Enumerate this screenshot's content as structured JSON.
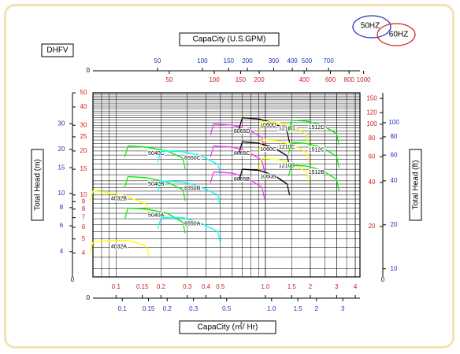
{
  "chart_data": {
    "type": "line",
    "model": "DHFV",
    "freq_legend": [
      {
        "label": "50HZ",
        "color": "#2030c0"
      },
      {
        "label": "60HZ",
        "color": "#d02020"
      }
    ],
    "x_top_title": "CapaCity (U.S.GPM)",
    "x_bottom_title": "CapaCity (㎥/ Hr)",
    "y_left_title": "Total Head (m)",
    "y_right_title": "Total Head (ft)",
    "x_scale": "log",
    "y_scale": "log",
    "xlim_m3min": [
      0.07,
      4.3
    ],
    "ylim_m": [
      2.2,
      40
    ],
    "colors": {
      "hz50": "#2030c0",
      "hz60": "#d02020",
      "black": "#000000",
      "grid": "#000000"
    },
    "zero_label": "0",
    "axes": {
      "top_blue_gpm": {
        "labels": [
          "50",
          "100",
          "150",
          "200",
          "300",
          "400",
          "500",
          "700"
        ],
        "values": [
          50,
          100,
          150,
          200,
          300,
          400,
          500,
          700
        ]
      },
      "top_red_gpm": {
        "labels": [
          "50",
          "100",
          "150",
          "200",
          "400",
          "600",
          "800",
          "1000"
        ],
        "values": [
          50,
          100,
          150,
          200,
          400,
          600,
          800,
          1000
        ]
      },
      "bottom_red_m3": {
        "labels": [
          "0.1",
          "0.15",
          "0.2",
          "0.3",
          "0.4",
          "0.5",
          "1.0",
          "1.5",
          "2",
          "3",
          "4"
        ],
        "values": [
          0.1,
          0.15,
          0.2,
          0.3,
          0.4,
          0.5,
          1.0,
          1.5,
          2,
          3,
          4
        ]
      },
      "bottom_blue_m3": {
        "labels": [
          "0.1",
          "0.15",
          "0.2",
          "0.3",
          "0.5",
          "1.0",
          "1.5",
          "2",
          "3"
        ],
        "values": [
          0.1,
          0.15,
          0.2,
          0.3,
          0.5,
          1.0,
          1.5,
          2,
          3
        ]
      },
      "left_blue_m": {
        "labels": [
          "30",
          "20",
          "15",
          "10",
          "8",
          "6",
          "4"
        ],
        "values": [
          30,
          20,
          15,
          10,
          8,
          6,
          4
        ]
      },
      "left_red_m": {
        "labels": [
          "50",
          "40",
          "30",
          "25",
          "20",
          "15",
          "10",
          "9",
          "8",
          "7",
          "6",
          "5",
          "4"
        ],
        "values": [
          50,
          40,
          30,
          25,
          20,
          15,
          10,
          9,
          8,
          7,
          6,
          5,
          4
        ]
      },
      "right_red_ft": {
        "labels": [
          "150",
          "120",
          "100",
          "80",
          "60",
          "40",
          "20"
        ],
        "values": [
          150,
          120,
          100,
          80,
          60,
          40,
          20
        ]
      },
      "right_blue_ft": {
        "labels": [
          "100",
          "80",
          "60",
          "40",
          "20",
          "10"
        ],
        "values": [
          100,
          80,
          60,
          40,
          20,
          10
        ]
      }
    },
    "series": [
      {
        "name": "4032A",
        "color": "#ffff00",
        "points": [
          [
            0.07,
            3.8
          ],
          [
            0.09,
            3.9
          ],
          [
            0.12,
            3.9
          ],
          [
            0.16,
            3.6
          ]
        ]
      },
      {
        "name": "4032B",
        "color": "#ffff00",
        "points": [
          [
            0.07,
            8.5
          ],
          [
            0.09,
            8.3
          ],
          [
            0.12,
            7.8
          ],
          [
            0.16,
            6.9
          ]
        ]
      },
      {
        "name": "5040A",
        "color": "#00ee00",
        "points": [
          [
            0.12,
            6.5
          ],
          [
            0.16,
            6.4
          ],
          [
            0.22,
            6.0
          ],
          [
            0.28,
            5.2
          ]
        ]
      },
      {
        "name": "5040B",
        "color": "#00ee00",
        "points": [
          [
            0.12,
            10.7
          ],
          [
            0.16,
            10.5
          ],
          [
            0.22,
            9.8
          ],
          [
            0.28,
            8.7
          ]
        ]
      },
      {
        "name": "5040C",
        "color": "#00ee00",
        "points": [
          [
            0.12,
            17.3
          ],
          [
            0.16,
            17.0
          ],
          [
            0.22,
            16.0
          ],
          [
            0.28,
            14.3
          ]
        ]
      },
      {
        "name": "6550A",
        "color": "#00ffff",
        "points": [
          [
            0.2,
            5.6
          ],
          [
            0.28,
            5.6
          ],
          [
            0.36,
            5.2
          ],
          [
            0.48,
            4.5
          ]
        ]
      },
      {
        "name": "6550B",
        "color": "#00ffff",
        "points": [
          [
            0.2,
            10.0
          ],
          [
            0.28,
            9.8
          ],
          [
            0.36,
            9.2
          ],
          [
            0.48,
            8.0
          ]
        ]
      },
      {
        "name": "6550C",
        "color": "#00ffff",
        "points": [
          [
            0.2,
            16.0
          ],
          [
            0.28,
            15.8
          ],
          [
            0.36,
            15.0
          ],
          [
            0.48,
            13.0
          ]
        ]
      },
      {
        "name": "8065B",
        "color": "#ff33ff",
        "points": [
          [
            0.45,
            11.5
          ],
          [
            0.6,
            11.3
          ],
          [
            0.75,
            10.5
          ],
          [
            0.95,
            9.0
          ]
        ]
      },
      {
        "name": "8065C",
        "color": "#ff33ff",
        "points": [
          [
            0.45,
            17.3
          ],
          [
            0.6,
            17.0
          ],
          [
            0.75,
            16.0
          ],
          [
            0.95,
            13.8
          ]
        ]
      },
      {
        "name": "8065D",
        "color": "#ff33ff",
        "points": [
          [
            0.45,
            24.5
          ],
          [
            0.6,
            24.0
          ],
          [
            0.75,
            22.7
          ],
          [
            0.95,
            19.8
          ]
        ]
      },
      {
        "name": "1060B",
        "color": "#000000",
        "points": [
          [
            0.7,
            12.0
          ],
          [
            0.9,
            11.8
          ],
          [
            1.15,
            10.9
          ],
          [
            1.4,
            9.5
          ]
        ]
      },
      {
        "name": "1060C",
        "color": "#000000",
        "points": [
          [
            0.7,
            18.5
          ],
          [
            0.9,
            18.1
          ],
          [
            1.15,
            16.8
          ],
          [
            1.4,
            14.8
          ]
        ]
      },
      {
        "name": "1060D",
        "color": "#000000",
        "points": [
          [
            0.7,
            27.0
          ],
          [
            0.9,
            26.5
          ],
          [
            1.15,
            24.8
          ],
          [
            1.4,
            21.7
          ]
        ]
      },
      {
        "name": "1210B",
        "color": "#ffff00",
        "points": [
          [
            0.95,
            14.2
          ],
          [
            1.2,
            14.0
          ],
          [
            1.55,
            13.0
          ],
          [
            1.9,
            11.4
          ]
        ]
      },
      {
        "name": "1210C",
        "color": "#ffff00",
        "points": [
          [
            0.95,
            19.0
          ],
          [
            1.2,
            18.8
          ],
          [
            1.55,
            17.6
          ],
          [
            1.9,
            15.5
          ]
        ]
      },
      {
        "name": "1210D",
        "color": "#ffff00",
        "points": [
          [
            0.95,
            25.5
          ],
          [
            1.2,
            25.1
          ],
          [
            1.55,
            23.5
          ],
          [
            1.9,
            20.6
          ]
        ]
      },
      {
        "name": "1512B",
        "color": "#00ee00",
        "points": [
          [
            1.5,
            12.8
          ],
          [
            1.9,
            12.6
          ],
          [
            2.4,
            11.8
          ],
          [
            3.0,
            10.2
          ]
        ]
      },
      {
        "name": "1512C",
        "color": "#00ee00",
        "points": [
          [
            1.5,
            18.3
          ],
          [
            1.9,
            18.0
          ],
          [
            2.4,
            16.9
          ],
          [
            3.0,
            14.7
          ]
        ]
      },
      {
        "name": "1512D",
        "color": "#00ee00",
        "points": [
          [
            1.5,
            26.0
          ],
          [
            1.9,
            25.6
          ],
          [
            2.4,
            24.0
          ],
          [
            3.0,
            21.0
          ]
        ]
      }
    ]
  }
}
